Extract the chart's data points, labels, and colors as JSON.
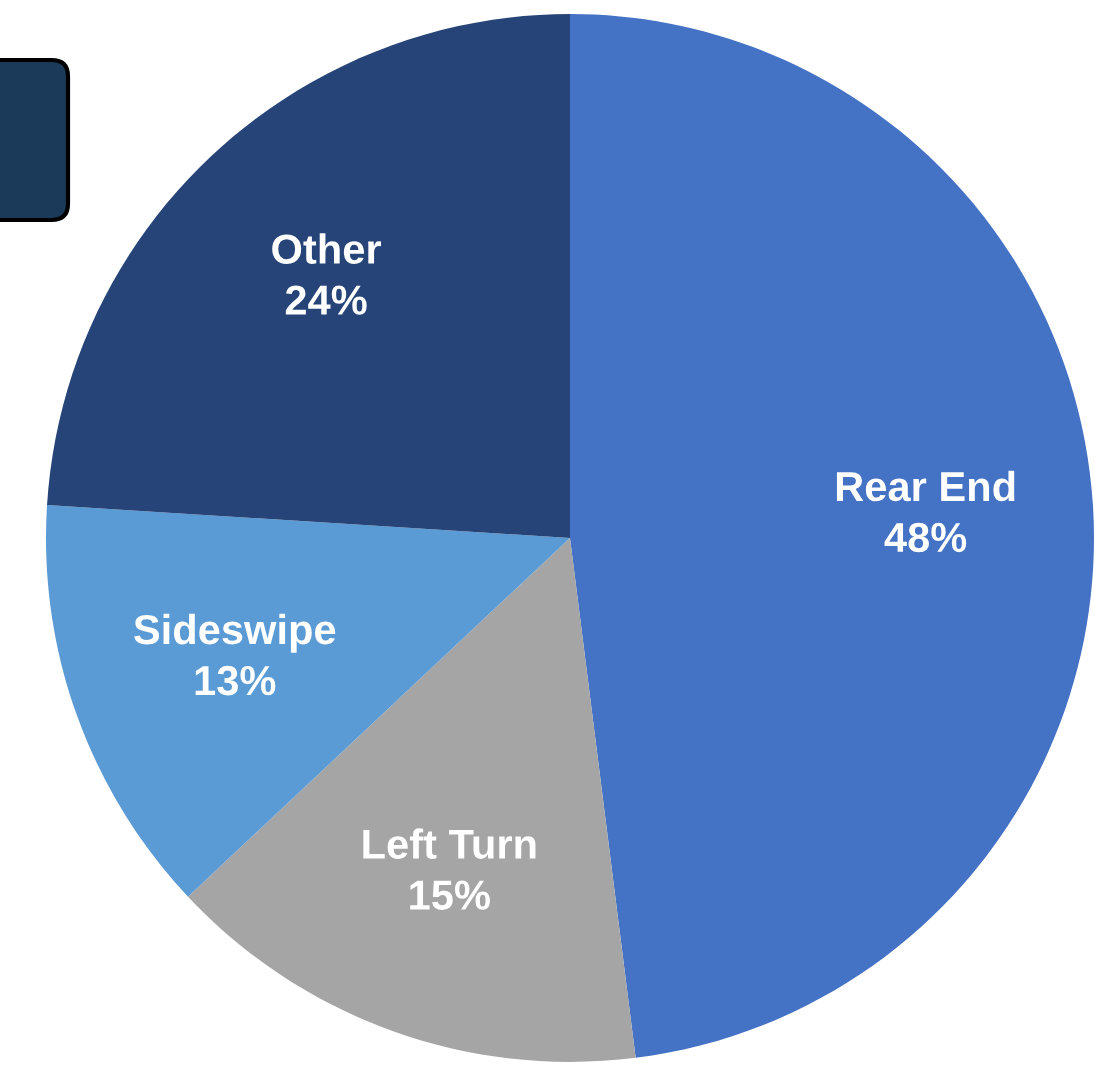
{
  "chart_data": {
    "type": "pie",
    "categories": [
      "Rear End",
      "Left Turn",
      "Sideswipe",
      "Other"
    ],
    "values": [
      48,
      15,
      13,
      24
    ],
    "colors": [
      "#4472c4",
      "#a5a5a5",
      "#5b9bd5",
      "#264478"
    ],
    "value_labels": [
      "48%",
      "15%",
      "13%",
      "24%"
    ]
  }
}
